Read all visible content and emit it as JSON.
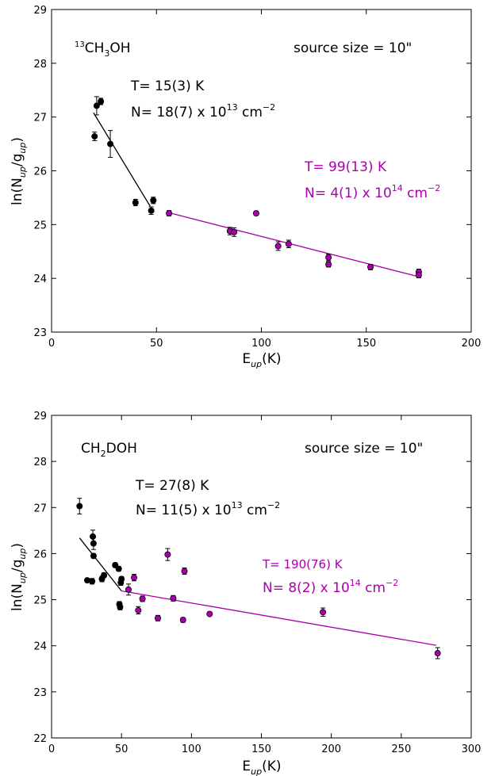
{
  "chart_data": [
    {
      "type": "scatter",
      "species_label": "13CH3OH",
      "source_size_label": "source size = 10\"",
      "xlabel": "E_up(K)",
      "ylabel": "ln(N_up/g_up)",
      "xlim": [
        0,
        200
      ],
      "ylim": [
        23,
        29
      ],
      "xticks": [
        0,
        50,
        100,
        150,
        200
      ],
      "yticks": [
        23,
        24,
        25,
        26,
        27,
        28,
        29
      ],
      "grid": false,
      "colors": {
        "cold": "#000000",
        "warm": "#aa00aa"
      },
      "fit_cold": {
        "x": [
          20,
          47
        ],
        "y": [
          27.08,
          25.34
        ],
        "label_T": "T= 15(3) K",
        "label_N": "N= 18(7) x 10¹³ cm⁻²"
      },
      "fit_warm": {
        "x": [
          56,
          175
        ],
        "y": [
          25.22,
          24.03
        ],
        "label_T": "T= 99(13) K",
        "label_N": "N= 4(1) x 10¹⁴ cm⁻²"
      },
      "series": [
        {
          "color": "#000000",
          "points": [
            {
              "x": 20.5,
              "y": 26.64,
              "err": 0.08
            },
            {
              "x": 21.5,
              "y": 27.21,
              "err": 0.17
            },
            {
              "x": 23.5,
              "y": 27.29,
              "err": 0.06
            },
            {
              "x": 28.0,
              "y": 26.5,
              "err": 0.25
            },
            {
              "x": 40.0,
              "y": 25.41,
              "err": 0.06
            },
            {
              "x": 47.5,
              "y": 25.26,
              "err": 0.07
            },
            {
              "x": 48.5,
              "y": 25.45,
              "err": 0.06
            }
          ]
        },
        {
          "color": "#aa00aa",
          "points": [
            {
              "x": 56.0,
              "y": 25.21,
              "err": 0.05
            },
            {
              "x": 85.0,
              "y": 24.88,
              "err": 0.07
            },
            {
              "x": 87.0,
              "y": 24.86,
              "err": 0.08
            },
            {
              "x": 97.5,
              "y": 25.21,
              "err": 0.04
            },
            {
              "x": 108.0,
              "y": 24.6,
              "err": 0.08
            },
            {
              "x": 113.0,
              "y": 24.64,
              "err": 0.07
            },
            {
              "x": 132.0,
              "y": 24.39,
              "err": 0.06
            },
            {
              "x": 132.0,
              "y": 24.26,
              "err": 0.05
            },
            {
              "x": 152.0,
              "y": 24.21,
              "err": 0.05
            },
            {
              "x": 175.0,
              "y": 24.12,
              "err": 0.05
            },
            {
              "x": 175.0,
              "y": 24.06,
              "err": 0.05
            }
          ]
        }
      ]
    },
    {
      "type": "scatter",
      "species_label": "CH2DOH",
      "source_size_label": "source size = 10\"",
      "xlabel": "E_up(K)",
      "ylabel": "ln(N_up/g_up)",
      "xlim": [
        0,
        300
      ],
      "ylim": [
        22,
        29
      ],
      "xticks": [
        0,
        50,
        100,
        150,
        200,
        250,
        300
      ],
      "yticks": [
        22,
        23,
        24,
        25,
        26,
        27,
        28,
        29
      ],
      "grid": false,
      "colors": {
        "cold": "#000000",
        "warm": "#aa00aa"
      },
      "fit_cold": {
        "x": [
          20,
          50
        ],
        "y": [
          26.34,
          25.19
        ],
        "label_T": "T= 27(8) K",
        "label_N": "N= 11(5) x 10¹³ cm⁻²"
      },
      "fit_warm": {
        "x": [
          50,
          275
        ],
        "y": [
          25.19,
          24.01
        ],
        "label_T": "T= 190(76) K",
        "label_N": "N= 8(2) x 10¹⁴ cm⁻²"
      },
      "series": [
        {
          "color": "#000000",
          "points": [
            {
              "x": 20.0,
              "y": 27.03,
              "err": 0.17
            },
            {
              "x": 25.5,
              "y": 25.42,
              "err": 0.04
            },
            {
              "x": 29.0,
              "y": 25.4,
              "err": 0.06
            },
            {
              "x": 29.5,
              "y": 26.37,
              "err": 0.14
            },
            {
              "x": 30.0,
              "y": 26.22,
              "err": 0.13
            },
            {
              "x": 30.0,
              "y": 25.95,
              "err": 0.05
            },
            {
              "x": 36.0,
              "y": 25.45,
              "err": 0.06
            },
            {
              "x": 37.5,
              "y": 25.53,
              "err": 0.05
            },
            {
              "x": 45.5,
              "y": 25.75,
              "err": 0.05
            },
            {
              "x": 48.0,
              "y": 25.67,
              "err": 0.05
            },
            {
              "x": 48.5,
              "y": 24.9,
              "err": 0.06
            },
            {
              "x": 49.0,
              "y": 24.84,
              "err": 0.06
            },
            {
              "x": 49.5,
              "y": 25.37,
              "err": 0.06
            },
            {
              "x": 50.0,
              "y": 25.45,
              "err": 0.05
            }
          ]
        },
        {
          "color": "#aa00aa",
          "points": [
            {
              "x": 55.0,
              "y": 25.22,
              "err": 0.12
            },
            {
              "x": 59.0,
              "y": 25.48,
              "err": 0.07
            },
            {
              "x": 62.0,
              "y": 24.77,
              "err": 0.08
            },
            {
              "x": 65.0,
              "y": 25.02,
              "err": 0.06
            },
            {
              "x": 76.0,
              "y": 24.6,
              "err": 0.06
            },
            {
              "x": 83.0,
              "y": 25.98,
              "err": 0.13
            },
            {
              "x": 87.0,
              "y": 25.03,
              "err": 0.06
            },
            {
              "x": 94.0,
              "y": 24.56,
              "err": 0.05
            },
            {
              "x": 95.0,
              "y": 25.62,
              "err": 0.07
            },
            {
              "x": 113.0,
              "y": 24.69,
              "err": 0.04
            },
            {
              "x": 194.0,
              "y": 24.73,
              "err": 0.09
            },
            {
              "x": 276.0,
              "y": 23.84,
              "err": 0.12
            }
          ]
        }
      ]
    }
  ]
}
